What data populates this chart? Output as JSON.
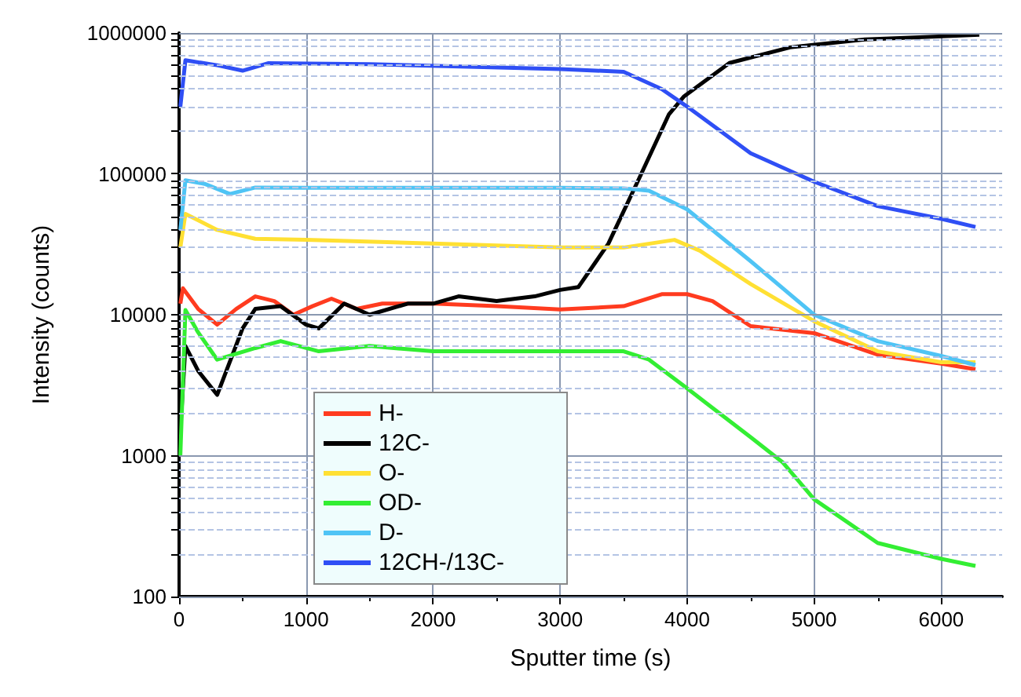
{
  "chart_data": {
    "type": "line",
    "xlabel": "Sputter time (s)",
    "ylabel": "Intensity (counts)",
    "log": "y",
    "xlim": [
      0,
      6480
    ],
    "xticks": [
      0,
      1000,
      2000,
      3000,
      4000,
      5000,
      6000
    ],
    "ylim": [
      100,
      1000000
    ],
    "yticks": [
      100,
      {
        "value": 200,
        "label": null
      },
      {
        "value": 300,
        "label": null
      },
      {
        "value": 400,
        "label": null
      },
      {
        "value": 500,
        "label": null
      },
      {
        "value": 600,
        "label": null
      },
      {
        "value": 700,
        "label": null
      },
      {
        "value": 800,
        "label": null
      },
      {
        "value": 900,
        "label": null
      },
      1000,
      {
        "value": 2000,
        "label": null
      },
      {
        "value": 3000,
        "label": null
      },
      {
        "value": 4000,
        "label": null
      },
      {
        "value": 5000,
        "label": null
      },
      {
        "value": 6000,
        "label": null
      },
      {
        "value": 7000,
        "label": null
      },
      {
        "value": 8000,
        "label": null
      },
      {
        "value": 9000,
        "label": null
      },
      10000,
      {
        "value": 20000,
        "label": null
      },
      {
        "value": 30000,
        "label": null
      },
      {
        "value": 40000,
        "label": null
      },
      {
        "value": 50000,
        "label": null
      },
      {
        "value": 60000,
        "label": null
      },
      {
        "value": 70000,
        "label": null
      },
      {
        "value": 80000,
        "label": null
      },
      {
        "value": 90000,
        "label": null
      },
      100000,
      {
        "value": 200000,
        "label": null
      },
      {
        "value": 300000,
        "label": null
      },
      {
        "value": 400000,
        "label": null
      },
      {
        "value": 500000,
        "label": null
      },
      {
        "value": 600000,
        "label": null
      },
      {
        "value": 700000,
        "label": null
      },
      {
        "value": 800000,
        "label": null
      },
      {
        "value": 900000,
        "label": null
      },
      1000000
    ],
    "grid": true,
    "legend": "bottom left",
    "series": [
      {
        "name": "H-",
        "color": "#ff3b1f",
        "x": [
          10,
          30,
          150,
          300,
          450,
          600,
          750,
          900,
          1050,
          1200,
          1400,
          1600,
          2000,
          2500,
          3000,
          3500,
          3800,
          4000,
          4200,
          4500,
          5000,
          5500,
          6000,
          6270
        ],
        "values": [
          12000,
          15400,
          11000,
          8500,
          11000,
          13500,
          12500,
          10000,
          11500,
          13000,
          11000,
          12000,
          12000,
          11500,
          10900,
          11500,
          14000,
          14000,
          12500,
          8300,
          7400,
          5200,
          4500,
          4100
        ]
      },
      {
        "name": "12C-",
        "color": "#000000",
        "x": [
          10,
          50,
          150,
          300,
          500,
          600,
          800,
          1000,
          1100,
          1300,
          1500,
          1800,
          2000,
          2200,
          2500,
          2800,
          3000,
          3143,
          3380,
          3620,
          3857,
          3976,
          4333,
          4810,
          5400,
          6300
        ],
        "values": [
          1500,
          6000,
          4000,
          2700,
          8000,
          11000,
          11500,
          8500,
          8000,
          12000,
          10000,
          12000,
          12000,
          13500,
          12500,
          13500,
          15000,
          15700,
          32000,
          92000,
          265000,
          355000,
          612000,
          790000,
          900000,
          970000
        ]
      },
      {
        "name": "O-",
        "color": "#ffe033",
        "x": [
          10,
          50,
          300,
          600,
          1000,
          2000,
          3000,
          3500,
          3900,
          4100,
          4500,
          5000,
          5500,
          6000,
          6270
        ],
        "values": [
          30000,
          52000,
          40000,
          34600,
          34000,
          32000,
          30000,
          30000,
          34000,
          28500,
          16500,
          9000,
          5500,
          4600,
          4600
        ]
      },
      {
        "name": "OD-",
        "color": "#33ee33",
        "x": [
          10,
          50,
          150,
          300,
          600,
          800,
          1100,
          1500,
          2000,
          3000,
          3500,
          3700,
          4000,
          4500,
          4750,
          5000,
          5500,
          6000,
          6270
        ],
        "values": [
          1000,
          10800,
          7500,
          4800,
          5800,
          6500,
          5500,
          6000,
          5500,
          5500,
          5500,
          4800,
          3000,
          1350,
          900,
          490,
          240,
          185,
          165
        ]
      },
      {
        "name": "D-",
        "color": "#4fc4f5",
        "x": [
          10,
          50,
          200,
          400,
          600,
          1000,
          2000,
          3000,
          3500,
          3700,
          4000,
          4500,
          5000,
          5500,
          6000,
          6270
        ],
        "values": [
          40000,
          90000,
          85000,
          72000,
          80000,
          79600,
          79600,
          79600,
          79000,
          76000,
          56000,
          24000,
          10000,
          6500,
          5100,
          4400
        ]
      },
      {
        "name": "12CH-/13C-",
        "color": "#2f4ff5",
        "x": [
          10,
          50,
          300,
          500,
          700,
          1500,
          3000,
          3500,
          3800,
          4000,
          4500,
          5000,
          5500,
          6000,
          6270
        ],
        "values": [
          300000,
          640000,
          590000,
          540000,
          610000,
          600000,
          555000,
          530000,
          400000,
          300000,
          140000,
          88000,
          59000,
          48000,
          42000
        ]
      }
    ]
  }
}
